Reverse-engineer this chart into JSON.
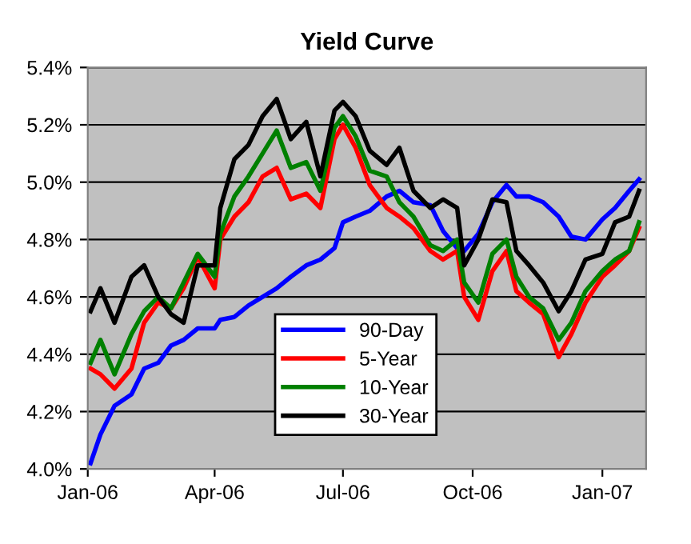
{
  "chart_data": {
    "type": "line",
    "title": "Yield Curve",
    "x": [
      "2006-01-03",
      "2006-01-10",
      "2006-01-20",
      "2006-02-01",
      "2006-02-10",
      "2006-02-20",
      "2006-03-01",
      "2006-03-10",
      "2006-03-20",
      "2006-04-01",
      "2006-04-05",
      "2006-04-15",
      "2006-04-25",
      "2006-05-05",
      "2006-05-15",
      "2006-05-25",
      "2006-06-05",
      "2006-06-15",
      "2006-06-25",
      "2006-07-01",
      "2006-07-10",
      "2006-07-20",
      "2006-08-01",
      "2006-08-10",
      "2006-08-20",
      "2006-09-01",
      "2006-09-10",
      "2006-09-20",
      "2006-09-25",
      "2006-10-05",
      "2006-10-15",
      "2006-10-25",
      "2006-11-01",
      "2006-11-10",
      "2006-11-20",
      "2006-12-01",
      "2006-12-10",
      "2006-12-20",
      "2007-01-01",
      "2007-01-10",
      "2007-01-20",
      "2007-01-27"
    ],
    "series": [
      {
        "name": "90-Day",
        "color": "#0000ff",
        "values": [
          4.02,
          4.12,
          4.22,
          4.26,
          4.35,
          4.37,
          4.43,
          4.45,
          4.49,
          4.49,
          4.52,
          4.53,
          4.57,
          4.6,
          4.63,
          4.67,
          4.71,
          4.73,
          4.77,
          4.86,
          4.88,
          4.9,
          4.95,
          4.97,
          4.93,
          4.92,
          4.83,
          4.77,
          4.76,
          4.82,
          4.93,
          4.99,
          4.95,
          4.95,
          4.93,
          4.88,
          4.81,
          4.8,
          4.87,
          4.91,
          4.97,
          5.01
        ]
      },
      {
        "name": "5-Year",
        "color": "#ff0000",
        "values": [
          4.35,
          4.33,
          4.28,
          4.35,
          4.51,
          4.58,
          4.56,
          4.63,
          4.74,
          4.63,
          4.8,
          4.88,
          4.93,
          5.02,
          5.05,
          4.94,
          4.96,
          4.91,
          5.15,
          5.2,
          5.12,
          4.99,
          4.91,
          4.88,
          4.84,
          4.76,
          4.73,
          4.76,
          4.6,
          4.52,
          4.69,
          4.76,
          4.62,
          4.58,
          4.54,
          4.39,
          4.47,
          4.58,
          4.67,
          4.71,
          4.76,
          4.84
        ]
      },
      {
        "name": "10-Year",
        "color": "#008000",
        "values": [
          4.37,
          4.45,
          4.33,
          4.47,
          4.55,
          4.6,
          4.56,
          4.65,
          4.75,
          4.67,
          4.82,
          4.95,
          5.02,
          5.1,
          5.18,
          5.05,
          5.07,
          4.97,
          5.19,
          5.23,
          5.16,
          5.04,
          5.02,
          4.93,
          4.88,
          4.78,
          4.76,
          4.8,
          4.65,
          4.58,
          4.75,
          4.8,
          4.67,
          4.6,
          4.56,
          4.45,
          4.51,
          4.62,
          4.69,
          4.73,
          4.76,
          4.86
        ]
      },
      {
        "name": "30-Year",
        "color": "#000000",
        "values": [
          4.55,
          4.63,
          4.51,
          4.67,
          4.71,
          4.6,
          4.54,
          4.51,
          4.71,
          4.71,
          4.91,
          5.08,
          5.13,
          5.23,
          5.29,
          5.15,
          5.21,
          5.02,
          5.25,
          5.28,
          5.23,
          5.11,
          5.06,
          5.12,
          4.97,
          4.91,
          4.94,
          4.91,
          4.71,
          4.8,
          4.94,
          4.93,
          4.76,
          4.71,
          4.65,
          4.55,
          4.62,
          4.73,
          4.75,
          4.86,
          4.88,
          4.97
        ]
      }
    ],
    "xlim": [
      "2006-01-01",
      "2007-02-01"
    ],
    "xticks": [
      {
        "value": "2006-01-01",
        "label": "Jan-06"
      },
      {
        "value": "2006-04-01",
        "label": "Apr-06"
      },
      {
        "value": "2006-07-01",
        "label": "Jul-06"
      },
      {
        "value": "2006-10-01",
        "label": "Oct-06"
      },
      {
        "value": "2007-01-01",
        "label": "Jan-07"
      }
    ],
    "ylim": [
      4.0,
      5.4
    ],
    "yticks": [
      {
        "value": 4.0,
        "label": "4.0%"
      },
      {
        "value": 4.2,
        "label": "4.2%"
      },
      {
        "value": 4.4,
        "label": "4.4%"
      },
      {
        "value": 4.6,
        "label": "4.6%"
      },
      {
        "value": 4.8,
        "label": "4.8%"
      },
      {
        "value": 5.0,
        "label": "5.0%"
      },
      {
        "value": 5.2,
        "label": "5.2%"
      },
      {
        "value": 5.4,
        "label": "5.4%"
      }
    ],
    "grid": "y",
    "legend": "bottom",
    "marker": "none",
    "line_style": "solid"
  }
}
